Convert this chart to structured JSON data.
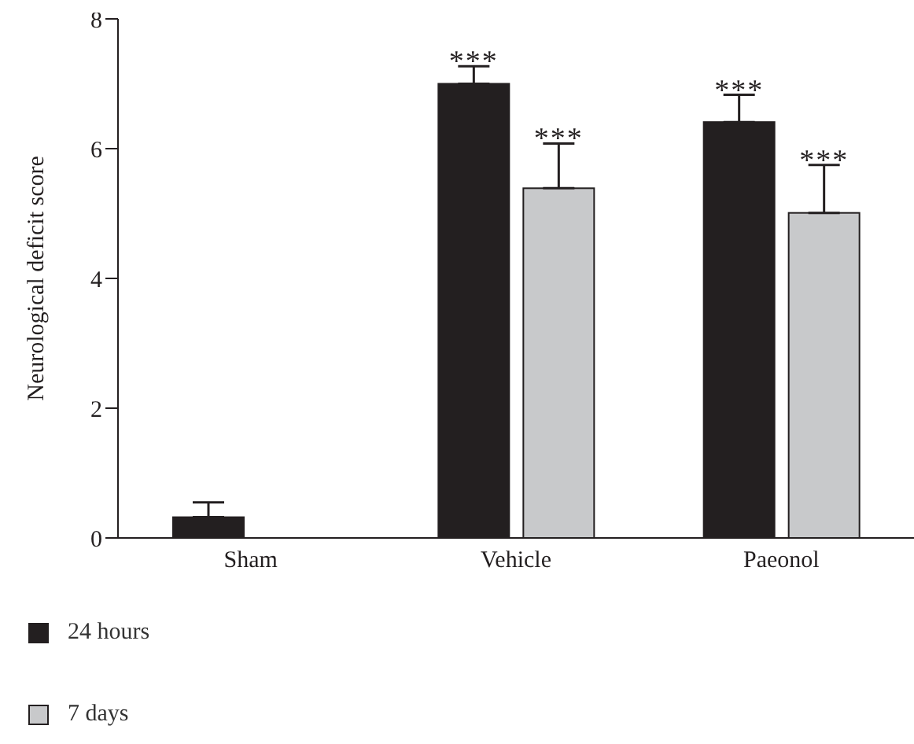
{
  "chart_data": {
    "type": "bar",
    "ylabel": "Neurological deficit score",
    "categories": [
      "Sham",
      "Vehicle",
      "Paeonol"
    ],
    "series": [
      {
        "name": "24 hours",
        "color": "#231f20",
        "values": [
          0.32,
          7.0,
          6.41
        ],
        "errors": [
          [
            0.32,
            0.55
          ],
          [
            7.0,
            7.27
          ],
          [
            6.41,
            6.83
          ]
        ],
        "value_labels": [
          null,
          "***",
          "***"
        ]
      },
      {
        "name": "7 days",
        "color": "#c8c9cb",
        "values": [
          0,
          5.39,
          5.01
        ],
        "errors": [
          null,
          [
            5.39,
            6.08
          ],
          [
            5.01,
            5.75
          ]
        ],
        "value_labels": [
          null,
          "***",
          "***"
        ]
      }
    ],
    "ylim": [
      0,
      8
    ],
    "yticks": [
      0,
      2,
      4,
      6,
      8
    ],
    "grid": false,
    "legend": "bottom left"
  }
}
